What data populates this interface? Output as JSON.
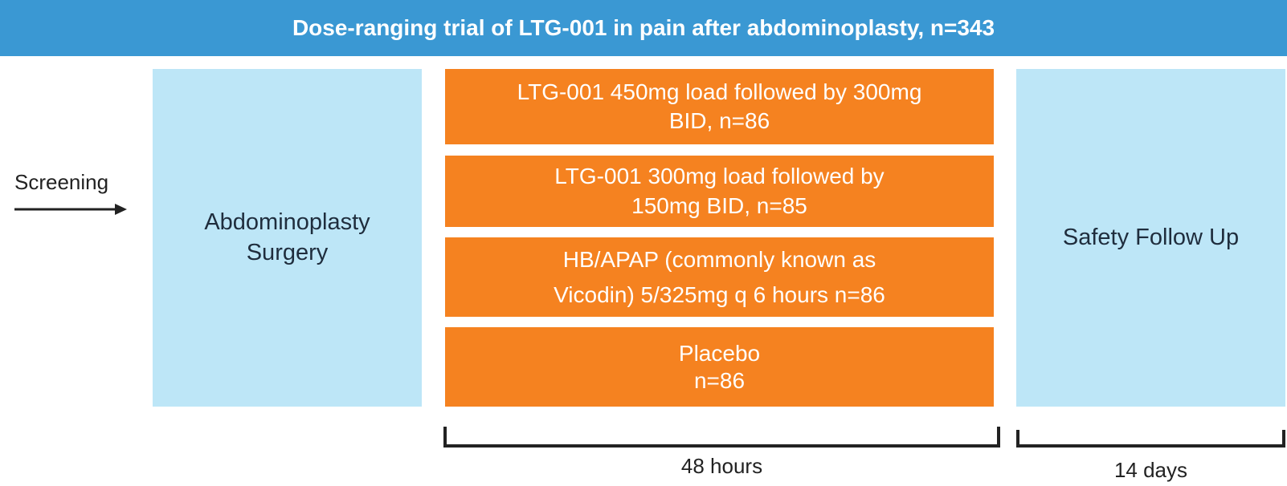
{
  "header": {
    "title": "Dose-ranging trial of LTG-001 in pain after abdominoplasty, n=343"
  },
  "screening": "Screening",
  "surgery": {
    "lines": [
      "Abdominoplasty",
      "Surgery"
    ]
  },
  "arms": [
    {
      "lines": [
        "LTG-001 450mg load followed by 300mg",
        "BID, n=86"
      ]
    },
    {
      "lines": [
        "LTG-001 300mg load followed by",
        "150mg BID, n=85"
      ]
    },
    {
      "lines": [
        "HB/APAP (commonly known as",
        "Vicodin) 5/325mg q 6 hours n=86"
      ]
    },
    {
      "lines": [
        "Placebo",
        "n=86"
      ]
    }
  ],
  "follow_up": "Safety Follow Up",
  "durations": [
    "48 hours",
    "14 days"
  ]
}
